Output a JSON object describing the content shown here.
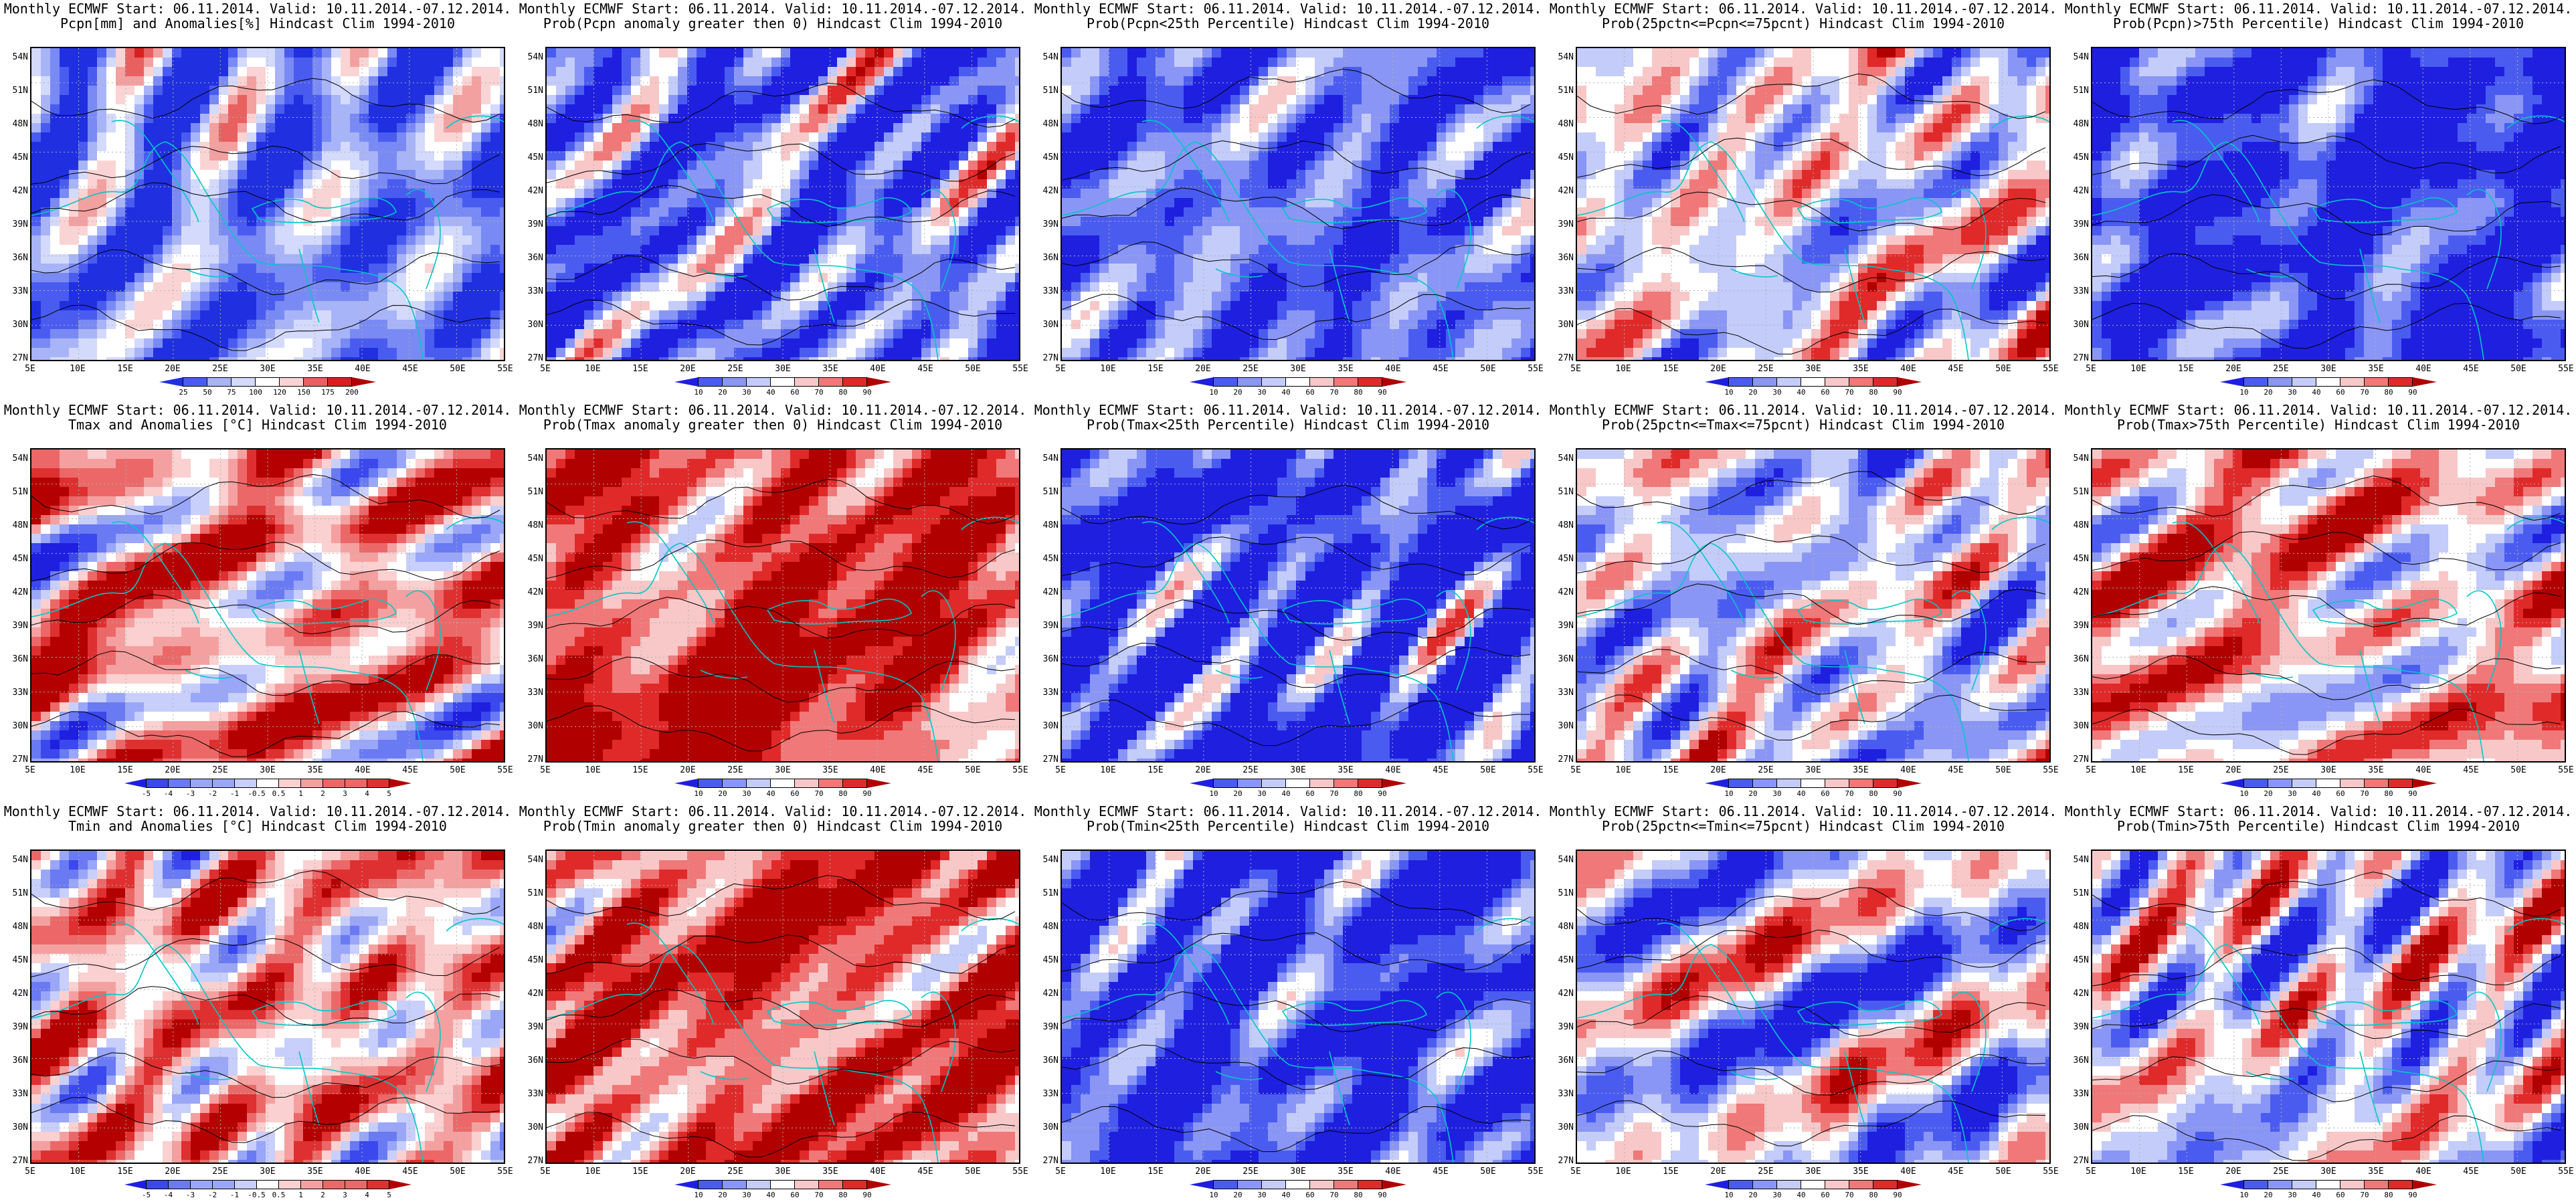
{
  "x_ticks": [
    "5E",
    "10E",
    "15E",
    "20E",
    "25E",
    "30E",
    "35E",
    "40E",
    "45E",
    "50E",
    "55E"
  ],
  "y_ticks": [
    "54N",
    "51N",
    "48N",
    "45N",
    "42N",
    "39N",
    "36N",
    "33N",
    "30N",
    "27N"
  ],
  "colors": {
    "scale_prob": [
      "#1f1fe0",
      "#4a5cf0",
      "#8a96f5",
      "#c4ccfa",
      "#ffffff",
      "#f8c8c8",
      "#f07878",
      "#e02a2a",
      "#b00000"
    ],
    "scale_anom": [
      "#1f1fe0",
      "#3a48ee",
      "#6a7af2",
      "#9aa6f7",
      "#c8cffb",
      "#ffffff",
      "#fbd0d0",
      "#f5a0a0",
      "#ec6868",
      "#de3030",
      "#b40000"
    ],
    "scale_pcpn": [
      "#2030e0",
      "#4a5cf0",
      "#7a8af4",
      "#a8b4f8",
      "#d4dafc",
      "#ffffff",
      "#fad4d4",
      "#f3a0a0",
      "#e86060",
      "#d82020",
      "#b00000"
    ],
    "contour": "#000000",
    "coastline": "#00c8c8",
    "grid": "#b0b0b0"
  },
  "panels": [
    {
      "title1": "Monthly ECMWF Start: 06.11.2014. Valid: 10.11.2014.-07.12.2014.",
      "title2": "Pcpn[mm] and Anomalies[%]",
      "title3": "Hindcast Clim 1994-2010",
      "scale": "scale_pcpn",
      "cbar_labels": [
        "25",
        "50",
        "75",
        "100",
        "120",
        "150",
        "175",
        "200"
      ],
      "bias": -0.55,
      "seed": 11
    },
    {
      "title1": "Monthly ECMWF Start: 06.11.2014. Valid: 10.11.2014.-07.12.2014.",
      "title2": "Prob(Pcpn anomaly greater then 0)",
      "title3": "Hindcast Clim 1994-2010",
      "scale": "scale_prob",
      "cbar_labels": [
        "10",
        "20",
        "30",
        "40",
        "60",
        "70",
        "80",
        "90"
      ],
      "bias": -0.6,
      "seed": 12
    },
    {
      "title1": "Monthly ECMWF Start: 06.11.2014. Valid: 10.11.2014.-07.12.2014.",
      "title2": "Prob(Pcpn<25th Percentile)",
      "title3": "Hindcast Clim 1994-2010",
      "scale": "scale_prob",
      "cbar_labels": [
        "10",
        "20",
        "30",
        "40",
        "60",
        "70",
        "80",
        "90"
      ],
      "bias": -0.65,
      "seed": 13
    },
    {
      "title1": "Monthly ECMWF Start: 06.11.2014. Valid: 10.11.2014.-07.12.2014.",
      "title2": "Prob(25pctn<=Pcpn<=75pcnt)",
      "title3": "Hindcast Clim 1994-2010",
      "scale": "scale_prob",
      "cbar_labels": [
        "10",
        "20",
        "30",
        "40",
        "60",
        "70",
        "80",
        "90"
      ],
      "bias": -0.1,
      "seed": 14
    },
    {
      "title1": "Monthly ECMWF Start: 06.11.2014. Valid: 10.11.2014.-07.12.2014.",
      "title2": "Prob(Pcpn)>75th Percentile)",
      "title3": "Hindcast Clim 1994-2010",
      "scale": "scale_prob",
      "cbar_labels": [
        "10",
        "20",
        "30",
        "40",
        "60",
        "70",
        "80",
        "90"
      ],
      "bias": -0.9,
      "seed": 15
    },
    {
      "title1": "Monthly ECMWF Start: 06.11.2014. Valid: 10.11.2014.-07.12.2014.",
      "title2": "Tmax and Anomalies [°C]",
      "title3": "Hindcast Clim 1994-2010",
      "scale": "scale_anom",
      "cbar_labels": [
        "-5",
        "-4",
        "-3",
        "-2",
        "-1",
        "-0.5",
        "0.5",
        "1",
        "2",
        "3",
        "4",
        "5"
      ],
      "bias": 0.35,
      "seed": 21
    },
    {
      "title1": "Monthly ECMWF Start: 06.11.2014. Valid: 10.11.2014.-07.12.2014.",
      "title2": "Prob(Tmax anomaly greater then 0)",
      "title3": "Hindcast Clim 1994-2010",
      "scale": "scale_prob",
      "cbar_labels": [
        "10",
        "20",
        "30",
        "40",
        "60",
        "70",
        "80",
        "90"
      ],
      "bias": 0.75,
      "seed": 22
    },
    {
      "title1": "Monthly ECMWF Start: 06.11.2014. Valid: 10.11.2014.-07.12.2014.",
      "title2": "Prob(Tmax<25th Percentile)",
      "title3": "Hindcast Clim 1994-2010",
      "scale": "scale_prob",
      "cbar_labels": [
        "10",
        "20",
        "30",
        "40",
        "60",
        "70",
        "80",
        "90"
      ],
      "bias": -0.95,
      "seed": 23
    },
    {
      "title1": "Monthly ECMWF Start: 06.11.2014. Valid: 10.11.2014.-07.12.2014.",
      "title2": "Prob(25pctn<=Tmax<=75pcnt)",
      "title3": "Hindcast Clim 1994-2010",
      "scale": "scale_prob",
      "cbar_labels": [
        "10",
        "20",
        "30",
        "40",
        "60",
        "70",
        "80",
        "90"
      ],
      "bias": -0.15,
      "seed": 24
    },
    {
      "title1": "Monthly ECMWF Start: 06.11.2014. Valid: 10.11.2014.-07.12.2014.",
      "title2": "Prob(Tmax>75th Percentile)",
      "title3": "Hindcast Clim 1994-2010",
      "scale": "scale_prob",
      "cbar_labels": [
        "10",
        "20",
        "30",
        "40",
        "60",
        "70",
        "80",
        "90"
      ],
      "bias": 0.25,
      "seed": 25
    },
    {
      "title1": "Monthly ECMWF Start: 06.11.2014. Valid: 10.11.2014.-07.12.2014.",
      "title2": "Tmin and Anomalies [°C]",
      "title3": "Hindcast Clim 1994-2010",
      "scale": "scale_anom",
      "cbar_labels": [
        "-5",
        "-4",
        "-3",
        "-2",
        "-1",
        "-0.5",
        "0.5",
        "1",
        "2",
        "3",
        "4",
        "5"
      ],
      "bias": 0.3,
      "seed": 31
    },
    {
      "title1": "Monthly ECMWF Start: 06.11.2014. Valid: 10.11.2014.-07.12.2014.",
      "title2": "Prob(Tmin anomaly greater then 0)",
      "title3": "Hindcast Clim 1994-2010",
      "scale": "scale_prob",
      "cbar_labels": [
        "10",
        "20",
        "30",
        "40",
        "60",
        "70",
        "80",
        "90"
      ],
      "bias": 0.65,
      "seed": 32
    },
    {
      "title1": "Monthly ECMWF Start: 06.11.2014. Valid: 10.11.2014.-07.12.2014.",
      "title2": "Prob(Tmin<25th Percentile)",
      "title3": "Hindcast Clim 1994-2010",
      "scale": "scale_prob",
      "cbar_labels": [
        "10",
        "20",
        "30",
        "40",
        "60",
        "70",
        "80",
        "90"
      ],
      "bias": -0.9,
      "seed": 33
    },
    {
      "title1": "Monthly ECMWF Start: 06.11.2014. Valid: 10.11.2014.-07.12.2014.",
      "title2": "Prob(25pctn<=Tmin<=75pcnt)",
      "title3": "Hindcast Clim 1994-2010",
      "scale": "scale_prob",
      "cbar_labels": [
        "10",
        "20",
        "30",
        "40",
        "60",
        "70",
        "80",
        "90"
      ],
      "bias": -0.2,
      "seed": 34
    },
    {
      "title1": "Monthly ECMWF Start: 06.11.2014. Valid: 10.11.2014.-07.12.2014.",
      "title2": "Prob(Tmin>75th Percentile)",
      "title3": "Hindcast Clim 1994-2010",
      "scale": "scale_prob",
      "cbar_labels": [
        "10",
        "20",
        "30",
        "40",
        "60",
        "70",
        "80",
        "90"
      ],
      "bias": -0.1,
      "seed": 35
    }
  ]
}
